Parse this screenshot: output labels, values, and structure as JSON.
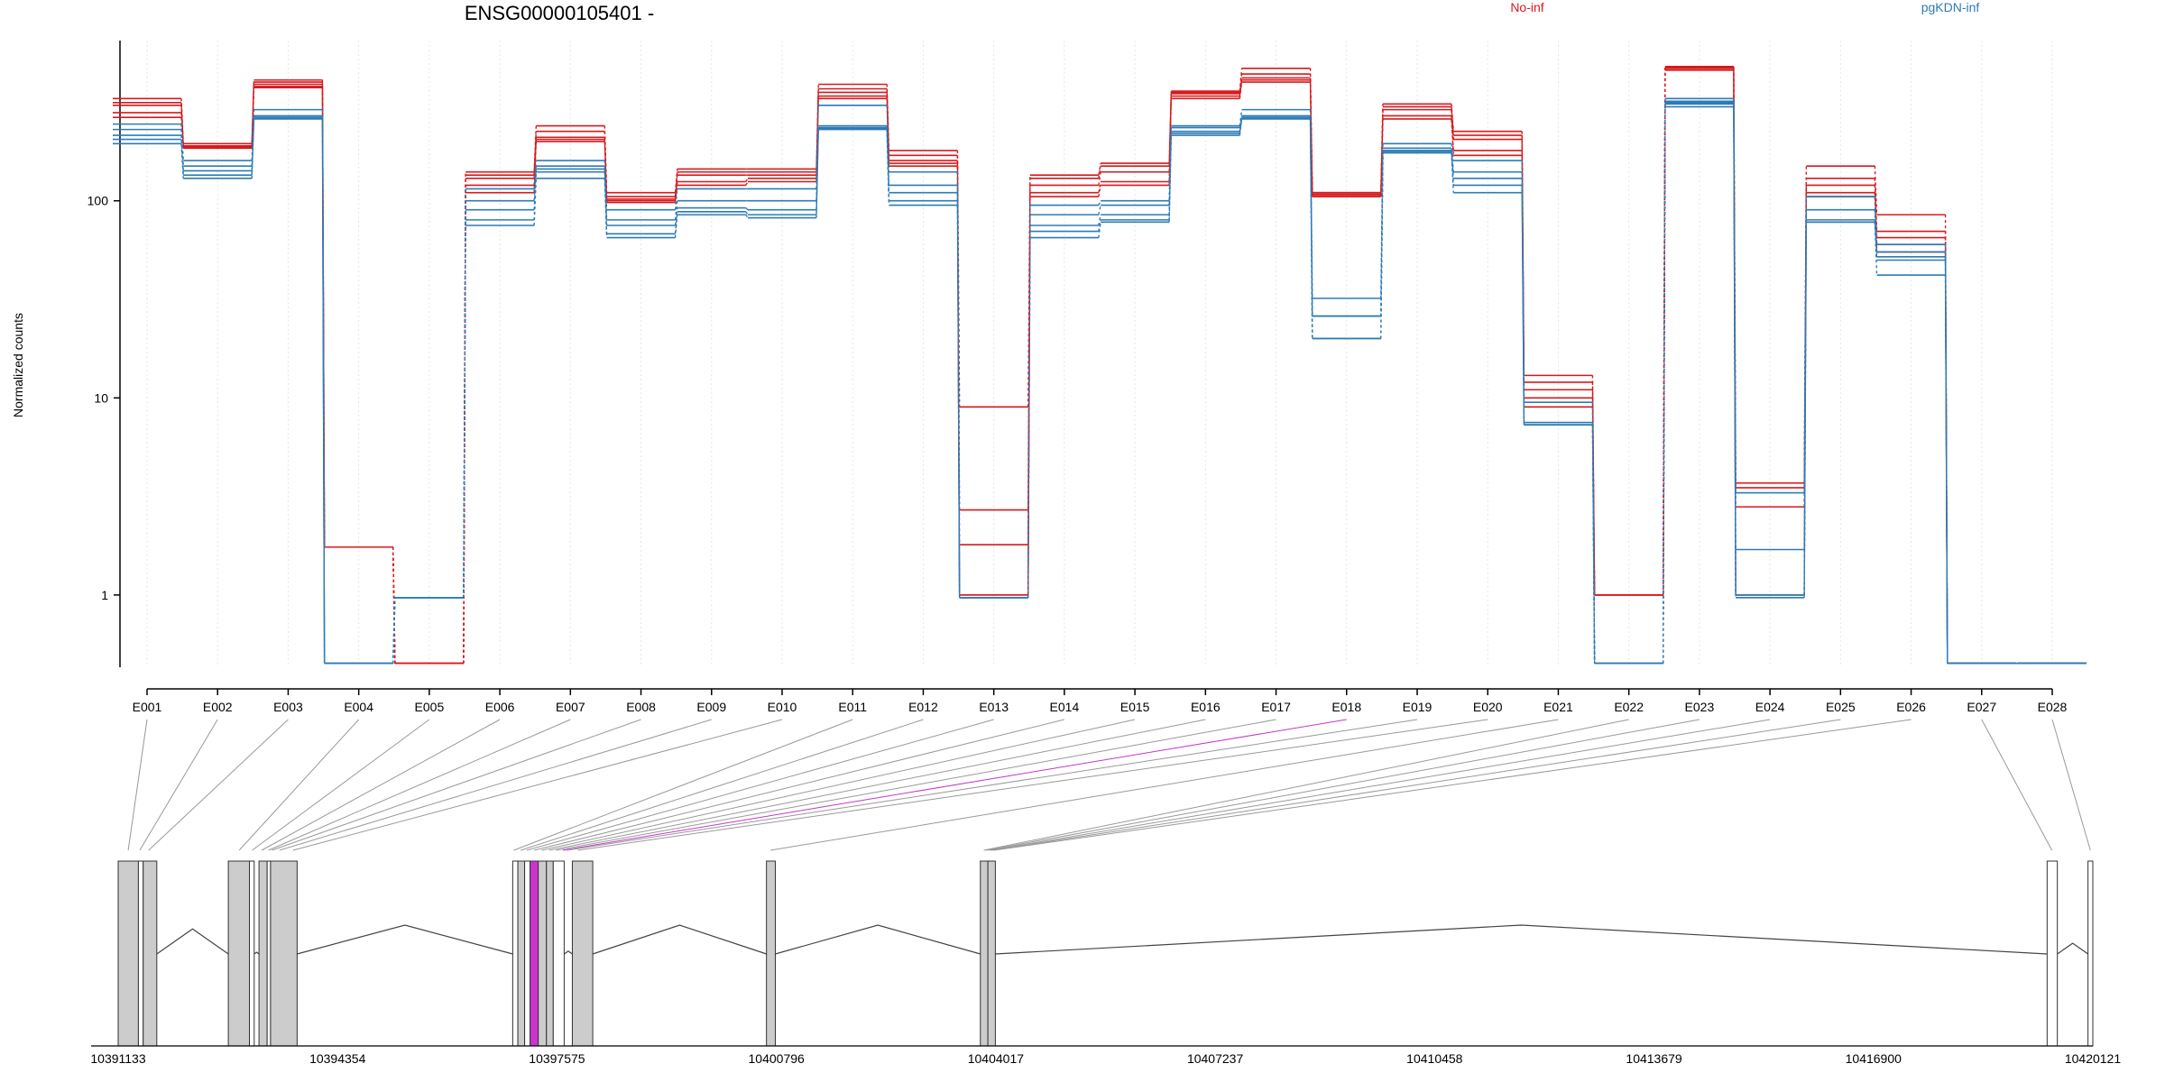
{
  "title": "ENSG00000105401 -",
  "legend": [
    {
      "name": "No-inf",
      "color": "#d7191c"
    },
    {
      "name": "pgKDN-inf",
      "color": "#2c7bb6"
    }
  ],
  "colors": {
    "highlight": "#cc33cc",
    "exon_fill": "#cccccc",
    "axis": "#000000",
    "grid": "#e6e6e6"
  },
  "chart_data": {
    "type": "line",
    "ylabel": "Normalized counts",
    "yscale": "log",
    "ylim": [
      0.43,
      650
    ],
    "y_ticks": [
      1,
      10,
      100
    ],
    "y_tick_labels": [
      "1",
      "10",
      "100"
    ],
    "categories": [
      "E001",
      "E002",
      "E003",
      "E004",
      "E005",
      "E006",
      "E007",
      "E008",
      "E009",
      "E010",
      "E011",
      "E012",
      "E013",
      "E014",
      "E015",
      "E016",
      "E017",
      "E018",
      "E019",
      "E020",
      "E021",
      "E022",
      "E023",
      "E024",
      "E025",
      "E026",
      "E027",
      "E028"
    ],
    "highlight_category": "E018",
    "series": [
      {
        "group": "No-inf",
        "values": [
          330,
          195,
          410,
          1.75,
          0.45,
          140,
          240,
          110,
          145,
          145,
          390,
          180,
          9,
          135,
          155,
          360,
          470,
          110,
          310,
          225,
          13,
          1,
          480,
          3.7,
          150,
          85,
          0.45,
          0.45
        ]
      },
      {
        "group": "No-inf",
        "values": [
          315,
          190,
          400,
          1.75,
          0.45,
          135,
          225,
          105,
          140,
          140,
          370,
          170,
          2.7,
          130,
          150,
          355,
          440,
          110,
          300,
          215,
          12,
          1,
          475,
          3.5,
          130,
          70,
          0.45,
          0.45
        ]
      },
      {
        "group": "No-inf",
        "values": [
          305,
          188,
          390,
          1.75,
          0.45,
          130,
          210,
          102,
          135,
          135,
          355,
          160,
          1.8,
          120,
          140,
          350,
          420,
          108,
          290,
          205,
          11,
          1,
          470,
          2.8,
          120,
          65,
          0.45,
          0.45
        ]
      },
      {
        "group": "No-inf",
        "values": [
          280,
          186,
          380,
          1.75,
          0.45,
          120,
          205,
          100,
          125,
          130,
          340,
          155,
          1,
          110,
          125,
          340,
          410,
          106,
          270,
          180,
          10,
          1,
          470,
          1,
          110,
          60,
          0.45,
          0.45
        ]
      },
      {
        "group": "No-inf",
        "values": [
          265,
          185,
          375,
          1.75,
          0.45,
          110,
          200,
          98,
          120,
          125,
          330,
          150,
          1,
          105,
          120,
          330,
          400,
          105,
          260,
          170,
          9,
          1,
          460,
          1,
          105,
          55,
          0.45,
          0.45
        ]
      },
      {
        "group": "pgKDN-inf",
        "values": [
          245,
          160,
          290,
          0.45,
          0.97,
          115,
          160,
          90,
          115,
          115,
          305,
          140,
          0.97,
          95,
          100,
          240,
          290,
          32,
          195,
          160,
          9.5,
          0.45,
          330,
          3.3,
          105,
          60,
          0.45,
          0.45
        ]
      },
      {
        "group": "pgKDN-inf",
        "values": [
          230,
          150,
          270,
          0.45,
          0.97,
          100,
          150,
          80,
          100,
          100,
          240,
          120,
          0.97,
          85,
          95,
          235,
          270,
          26,
          185,
          140,
          7.5,
          0.45,
          320,
          1.7,
          90,
          55,
          0.45,
          0.45
        ]
      },
      {
        "group": "pgKDN-inf",
        "values": [
          215,
          142,
          265,
          0.45,
          0.97,
          90,
          145,
          75,
          92,
          90,
          235,
          110,
          0.97,
          75,
          85,
          225,
          265,
          26,
          180,
          130,
          7.3,
          0.45,
          315,
          1,
          80,
          52,
          0.45,
          0.45
        ]
      },
      {
        "group": "pgKDN-inf",
        "values": [
          205,
          135,
          262,
          0.45,
          0.97,
          80,
          140,
          68,
          88,
          85,
          232,
          100,
          0.97,
          70,
          80,
          220,
          262,
          20,
          178,
          120,
          7.3,
          0.45,
          310,
          1,
          78,
          50,
          0.45,
          0.45
        ]
      },
      {
        "group": "pgKDN-inf",
        "values": [
          195,
          130,
          260,
          0.45,
          0.97,
          75,
          130,
          65,
          85,
          82,
          230,
          95,
          0.97,
          65,
          78,
          215,
          260,
          20,
          175,
          110,
          7.3,
          0.45,
          300,
          0.97,
          78,
          42,
          0.45,
          0.45
        ]
      }
    ]
  },
  "gene_model": {
    "coord_ticks": [
      "10391133",
      "10394354",
      "10397575",
      "10400796",
      "10404017",
      "10407237",
      "10410458",
      "10413679",
      "10416900",
      "10420121"
    ],
    "coord_start": 10391133,
    "coord_end": 10420121,
    "exons": [
      {
        "start": 10391133,
        "end": 10391430,
        "fill": "gray"
      },
      {
        "start": 10391430,
        "end": 10391500,
        "fill": "white"
      },
      {
        "start": 10391500,
        "end": 10391700,
        "fill": "gray"
      },
      {
        "start": 10392750,
        "end": 10393060,
        "fill": "gray"
      },
      {
        "start": 10393060,
        "end": 10393130,
        "fill": "white"
      },
      {
        "start": 10393200,
        "end": 10393320,
        "fill": "gray"
      },
      {
        "start": 10393320,
        "end": 10393370,
        "fill": "white"
      },
      {
        "start": 10393370,
        "end": 10393760,
        "fill": "gray"
      },
      {
        "start": 10396925,
        "end": 10397000,
        "fill": "white"
      },
      {
        "start": 10397000,
        "end": 10397100,
        "fill": "gray"
      },
      {
        "start": 10397100,
        "end": 10397180,
        "fill": "white"
      },
      {
        "start": 10397180,
        "end": 10397300,
        "fill": "highlight"
      },
      {
        "start": 10397300,
        "end": 10397420,
        "fill": "gray"
      },
      {
        "start": 10397420,
        "end": 10397520,
        "fill": "gray"
      },
      {
        "start": 10397520,
        "end": 10397680,
        "fill": "white"
      },
      {
        "start": 10397800,
        "end": 10398100,
        "fill": "gray"
      },
      {
        "start": 10400650,
        "end": 10400780,
        "fill": "gray"
      },
      {
        "start": 10403790,
        "end": 10403900,
        "fill": "gray"
      },
      {
        "start": 10403900,
        "end": 10404010,
        "fill": "gray"
      },
      {
        "start": 10419450,
        "end": 10419600,
        "fill": "white"
      },
      {
        "start": 10420050,
        "end": 10420121,
        "fill": "white"
      }
    ],
    "connector_targets": [
      10391280,
      10391450,
      10391580,
      10392910,
      10393100,
      10393240,
      10393340,
      10393390,
      10393500,
      10393700,
      10396940,
      10397040,
      10397130,
      10397240,
      10397350,
      10397460,
      10397560,
      10397660,
      10397720,
      10397880,
      10400710,
      10403840,
      10403880,
      10403930,
      10403960,
      10403990,
      10419520,
      10420085
    ]
  }
}
